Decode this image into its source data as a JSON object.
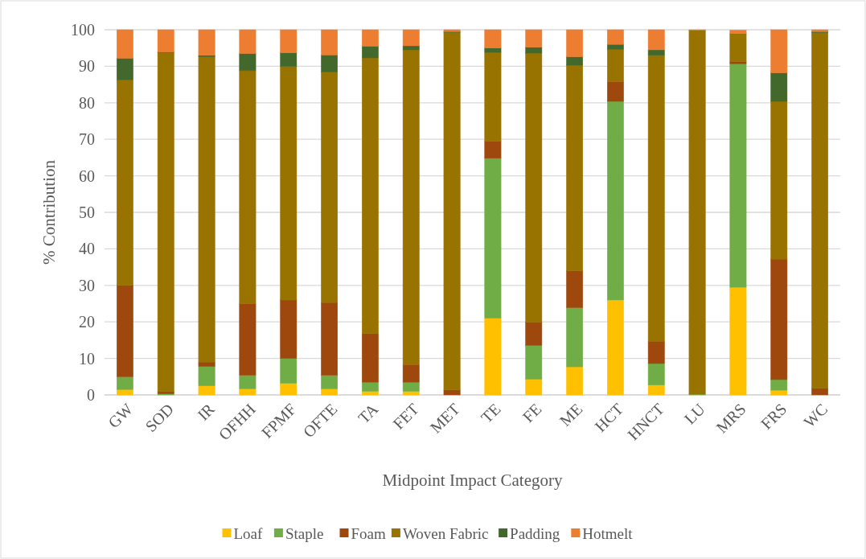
{
  "chart_data": {
    "type": "bar",
    "stacked": true,
    "xlabel": "Midpoint Impact Category",
    "ylabel": "% Contribution",
    "categories": [
      "GW",
      "SOD",
      "IR",
      "OFHH",
      "FPMF",
      "OFTE",
      "TA",
      "FET",
      "MET",
      "TE",
      "FE",
      "ME",
      "HCT",
      "HNCT",
      "LU",
      "MRS",
      "FRS",
      "WC"
    ],
    "series": [
      {
        "name": "Loaf",
        "color": "#ffc000",
        "values": [
          1.5,
          0,
          2.5,
          1.7,
          3.2,
          1.7,
          1,
          1,
          0,
          21,
          4.3,
          7.7,
          26,
          2.7,
          0,
          29.5,
          1.3,
          0
        ]
      },
      {
        "name": "Staple",
        "color": "#70ad47",
        "values": [
          3.5,
          0.3,
          5.3,
          3.7,
          6.8,
          3.7,
          2.5,
          2.5,
          0,
          43.8,
          9.3,
          16.2,
          54.4,
          5.9,
          0.2,
          61.2,
          2.9,
          0
        ]
      },
      {
        "name": "Foam",
        "color": "#9e480e",
        "values": [
          25,
          0.6,
          1.2,
          19.6,
          16,
          19.9,
          13.3,
          4.8,
          1.4,
          4.7,
          6.3,
          10.1,
          5.4,
          6.1,
          0,
          0.6,
          33,
          1.8
        ]
      },
      {
        "name": "Woven Fabric",
        "color": "#997300",
        "values": [
          56.3,
          92.9,
          83.6,
          63.8,
          64,
          63.1,
          75.5,
          86.2,
          97.9,
          24.3,
          73.7,
          56.3,
          8.8,
          78.3,
          99.7,
          7.7,
          43.2,
          97.4
        ]
      },
      {
        "name": "Padding",
        "color": "#43682b",
        "values": [
          5.9,
          0.1,
          0.4,
          4.7,
          3.7,
          4.7,
          3.2,
          1.1,
          0.2,
          1.2,
          1.6,
          2.3,
          1.4,
          1.5,
          0,
          null,
          7.8,
          0.3
        ]
      },
      {
        "name": "Hotmelt",
        "color": "#ed7d31",
        "values": [
          7.8,
          6.1,
          7,
          6.5,
          6.3,
          6.9,
          4.5,
          4.4,
          0.5,
          5,
          4.8,
          7.4,
          4,
          5.5,
          0.1,
          0.9,
          11.8,
          0.5
        ]
      }
    ],
    "ylim": [
      0,
      100
    ],
    "yticks": [
      0,
      10,
      20,
      30,
      40,
      50,
      60,
      70,
      80,
      90,
      100
    ],
    "grid": "y",
    "legend": "bottom"
  }
}
